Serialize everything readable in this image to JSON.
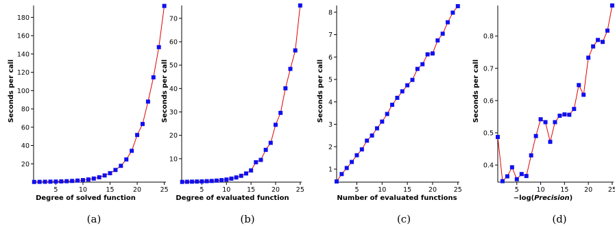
{
  "chart_data": [
    {
      "type": "line",
      "caption": "(a)",
      "xlabel": "Degree of solved function",
      "ylabel": "Seconds per call",
      "xticks": [
        5,
        10,
        15,
        20,
        25
      ],
      "yticks": [
        20,
        40,
        60,
        80,
        100,
        120,
        140,
        160,
        180
      ],
      "xlim": [
        0.9,
        25.3
      ],
      "ylim": [
        0,
        193
      ],
      "series": [
        {
          "x": [
            1,
            2,
            3,
            4,
            5,
            6,
            7,
            8,
            9,
            10,
            11,
            12,
            13,
            14,
            15,
            16,
            17,
            18,
            19,
            20,
            21,
            22,
            23,
            24,
            25
          ],
          "y": [
            0.2,
            0.3,
            0.4,
            0.5,
            0.6,
            0.8,
            1.0,
            1.3,
            1.7,
            2.2,
            2.9,
            3.9,
            5.3,
            7.3,
            9.8,
            13.3,
            17.8,
            24.8,
            34.2,
            51.5,
            63.5,
            88.0,
            114.5,
            147.5,
            192.5
          ]
        }
      ]
    },
    {
      "type": "line",
      "caption": "(b)",
      "xlabel": "Degree of evaluated function",
      "ylabel": "Seconds per call",
      "xticks": [
        5,
        10,
        15,
        20,
        25
      ],
      "yticks": [
        10,
        20,
        30,
        40,
        50,
        60,
        70
      ],
      "xlim": [
        0.9,
        25.3
      ],
      "ylim": [
        0,
        75.5
      ],
      "series": [
        {
          "x": [
            1,
            2,
            3,
            4,
            5,
            6,
            7,
            8,
            9,
            10,
            11,
            12,
            13,
            14,
            15,
            16,
            17,
            18,
            19,
            20,
            21,
            22,
            23,
            24,
            25
          ],
          "y": [
            0.1,
            0.15,
            0.2,
            0.25,
            0.3,
            0.4,
            0.5,
            0.65,
            0.85,
            1.1,
            1.5,
            2.0,
            2.7,
            3.7,
            5.0,
            8.5,
            9.5,
            13.8,
            16.8,
            24.5,
            29.6,
            40.1,
            48.4,
            56.3,
            75.5
          ]
        }
      ]
    },
    {
      "type": "line",
      "caption": "(c)",
      "xlabel": "Number of evaluated functions",
      "ylabel": "Seconds per call",
      "xticks": [
        5,
        10,
        15,
        20,
        25
      ],
      "yticks": [
        1,
        2,
        3,
        4,
        5,
        6,
        7,
        8
      ],
      "xlim": [
        1,
        25.3
      ],
      "ylim": [
        0.42,
        8.3
      ],
      "series": [
        {
          "x": [
            1,
            2,
            3,
            4,
            5,
            6,
            7,
            8,
            9,
            10,
            11,
            12,
            13,
            14,
            15,
            16,
            17,
            18,
            19,
            20,
            21,
            22,
            23,
            24,
            25
          ],
          "y": [
            0.45,
            0.78,
            1.05,
            1.32,
            1.62,
            1.88,
            2.27,
            2.5,
            2.82,
            3.12,
            3.46,
            3.87,
            4.18,
            4.47,
            4.74,
            4.98,
            5.47,
            5.68,
            6.12,
            6.16,
            6.74,
            7.04,
            7.55,
            7.98,
            8.27
          ]
        }
      ]
    },
    {
      "type": "line",
      "caption": "(d)",
      "xlabel_prefix": "−log(",
      "xlabel_italic": "Precision",
      "xlabel_suffix": ")",
      "ylabel": "Seconds per call",
      "xticks": [
        5,
        10,
        15,
        20,
        25
      ],
      "yticks": [
        0.4,
        0.5,
        0.6,
        0.7,
        0.8
      ],
      "xlim": [
        1,
        25.3
      ],
      "ylim": [
        0.347,
        0.895
      ],
      "series": [
        {
          "x": [
            1,
            2,
            3,
            4,
            5,
            6,
            7,
            8,
            9,
            10,
            11,
            12,
            13,
            14,
            15,
            16,
            17,
            18,
            19,
            20,
            21,
            22,
            23,
            24,
            25
          ],
          "y": [
            0.487,
            0.35,
            0.365,
            0.393,
            0.356,
            0.372,
            0.366,
            0.43,
            0.49,
            0.542,
            0.533,
            0.472,
            0.533,
            0.553,
            0.557,
            0.556,
            0.574,
            0.648,
            0.618,
            0.733,
            0.768,
            0.788,
            0.782,
            0.817,
            0.895
          ]
        }
      ]
    }
  ]
}
